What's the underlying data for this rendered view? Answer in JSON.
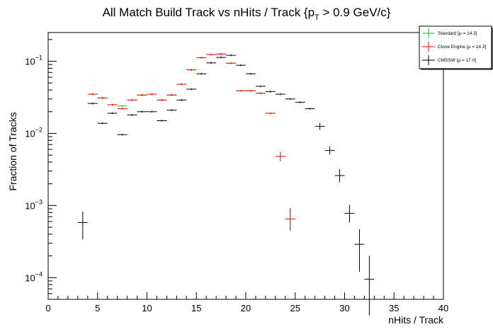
{
  "chart_data": {
    "type": "scatter",
    "title": {
      "main": "All Match Build Track vs nHits / Track {p",
      "sub": "T",
      "suffix": " > 0.9 GeV/c}"
    },
    "xlabel": "nHits / Track",
    "ylabel": "Fraction of Tracks",
    "xlim": [
      0,
      40
    ],
    "ylim": [
      5e-05,
      0.25
    ],
    "yscale": "log",
    "x_ticks": [
      0,
      5,
      10,
      15,
      20,
      25,
      30,
      35,
      40
    ],
    "y_ticks": [
      {
        "base": "10",
        "exp": "−4",
        "value": 0.0001
      },
      {
        "base": "10",
        "exp": "−3",
        "value": 0.001
      },
      {
        "base": "10",
        "exp": "−2",
        "value": 0.01
      },
      {
        "base": "10",
        "exp": "−1",
        "value": 0.1
      }
    ],
    "grid": false,
    "legend_position": "top-right",
    "series": [
      {
        "name": "Standard",
        "legend_label": "Standard  [μ = 14.3]",
        "color": "#00cc00",
        "points": [
          {
            "x": 4.5,
            "y": 0.035
          },
          {
            "x": 5.5,
            "y": 0.031
          },
          {
            "x": 6.5,
            "y": 0.025
          },
          {
            "x": 7.5,
            "y": 0.024
          },
          {
            "x": 8.5,
            "y": 0.029
          },
          {
            "x": 9.5,
            "y": 0.034
          },
          {
            "x": 10.5,
            "y": 0.035
          },
          {
            "x": 11.5,
            "y": 0.029
          },
          {
            "x": 12.5,
            "y": 0.034
          },
          {
            "x": 13.5,
            "y": 0.048
          },
          {
            "x": 14.5,
            "y": 0.076
          },
          {
            "x": 15.5,
            "y": 0.112
          },
          {
            "x": 16.5,
            "y": 0.124
          },
          {
            "x": 17.5,
            "y": 0.126
          },
          {
            "x": 18.5,
            "y": 0.094
          },
          {
            "x": 19.5,
            "y": 0.039
          },
          {
            "x": 20.5,
            "y": 0.039
          },
          {
            "x": 21.5,
            "y": 0.036
          },
          {
            "x": 22.5,
            "y": 0.019
          },
          {
            "x": 23.5,
            "y": 0.0048
          },
          {
            "x": 24.5,
            "y": 0.00065,
            "err_lo": 0.00045,
            "err_hi": 0.00092
          }
        ]
      },
      {
        "name": "Clone Engine",
        "legend_label": "Clone Engine  [μ = 14.3]",
        "color": "#ff0000",
        "points": [
          {
            "x": 4.5,
            "y": 0.035
          },
          {
            "x": 5.5,
            "y": 0.031
          },
          {
            "x": 6.5,
            "y": 0.025
          },
          {
            "x": 7.5,
            "y": 0.022
          },
          {
            "x": 8.5,
            "y": 0.029
          },
          {
            "x": 9.5,
            "y": 0.034
          },
          {
            "x": 10.5,
            "y": 0.035
          },
          {
            "x": 11.5,
            "y": 0.029
          },
          {
            "x": 12.5,
            "y": 0.034
          },
          {
            "x": 13.5,
            "y": 0.048
          },
          {
            "x": 14.5,
            "y": 0.076
          },
          {
            "x": 15.5,
            "y": 0.112
          },
          {
            "x": 16.5,
            "y": 0.124
          },
          {
            "x": 17.5,
            "y": 0.126
          },
          {
            "x": 18.5,
            "y": 0.094
          },
          {
            "x": 19.5,
            "y": 0.039
          },
          {
            "x": 20.5,
            "y": 0.039
          },
          {
            "x": 21.5,
            "y": 0.036
          },
          {
            "x": 22.5,
            "y": 0.019
          },
          {
            "x": 23.5,
            "y": 0.0048,
            "err_lo": 0.0041,
            "err_hi": 0.0056
          },
          {
            "x": 24.5,
            "y": 0.00065,
            "err_lo": 0.00045,
            "err_hi": 0.00092
          }
        ]
      },
      {
        "name": "CMSSW",
        "legend_label": "CMSSW  [μ = 17.0]",
        "color": "#000000",
        "points": [
          {
            "x": 3.5,
            "y": 0.00058,
            "err_lo": 0.00034,
            "err_hi": 0.00082
          },
          {
            "x": 4.5,
            "y": 0.026
          },
          {
            "x": 5.5,
            "y": 0.0138
          },
          {
            "x": 6.5,
            "y": 0.019
          },
          {
            "x": 7.5,
            "y": 0.0096
          },
          {
            "x": 8.5,
            "y": 0.018
          },
          {
            "x": 9.5,
            "y": 0.02
          },
          {
            "x": 10.5,
            "y": 0.02
          },
          {
            "x": 11.5,
            "y": 0.015
          },
          {
            "x": 12.5,
            "y": 0.021
          },
          {
            "x": 13.5,
            "y": 0.029
          },
          {
            "x": 14.5,
            "y": 0.041
          },
          {
            "x": 15.5,
            "y": 0.067
          },
          {
            "x": 16.5,
            "y": 0.095
          },
          {
            "x": 17.5,
            "y": 0.113
          },
          {
            "x": 18.5,
            "y": 0.121
          },
          {
            "x": 19.5,
            "y": 0.088
          },
          {
            "x": 20.5,
            "y": 0.067
          },
          {
            "x": 21.5,
            "y": 0.045
          },
          {
            "x": 22.5,
            "y": 0.038
          },
          {
            "x": 23.5,
            "y": 0.035
          },
          {
            "x": 24.5,
            "y": 0.03
          },
          {
            "x": 25.5,
            "y": 0.027
          },
          {
            "x": 26.5,
            "y": 0.022
          },
          {
            "x": 27.5,
            "y": 0.0125,
            "err_lo": 0.0111,
            "err_hi": 0.014
          },
          {
            "x": 28.5,
            "y": 0.0058,
            "err_lo": 0.0051,
            "err_hi": 0.0066
          },
          {
            "x": 29.5,
            "y": 0.0026,
            "err_lo": 0.0021,
            "err_hi": 0.0032
          },
          {
            "x": 30.5,
            "y": 0.00078,
            "err_lo": 0.00058,
            "err_hi": 0.00102
          },
          {
            "x": 31.5,
            "y": 0.00029,
            "err_lo": 0.00012,
            "err_hi": 0.00047
          },
          {
            "x": 32.5,
            "y": 9.5e-05,
            "err_lo": 3e-05,
            "err_hi": 0.0002
          }
        ]
      }
    ]
  }
}
